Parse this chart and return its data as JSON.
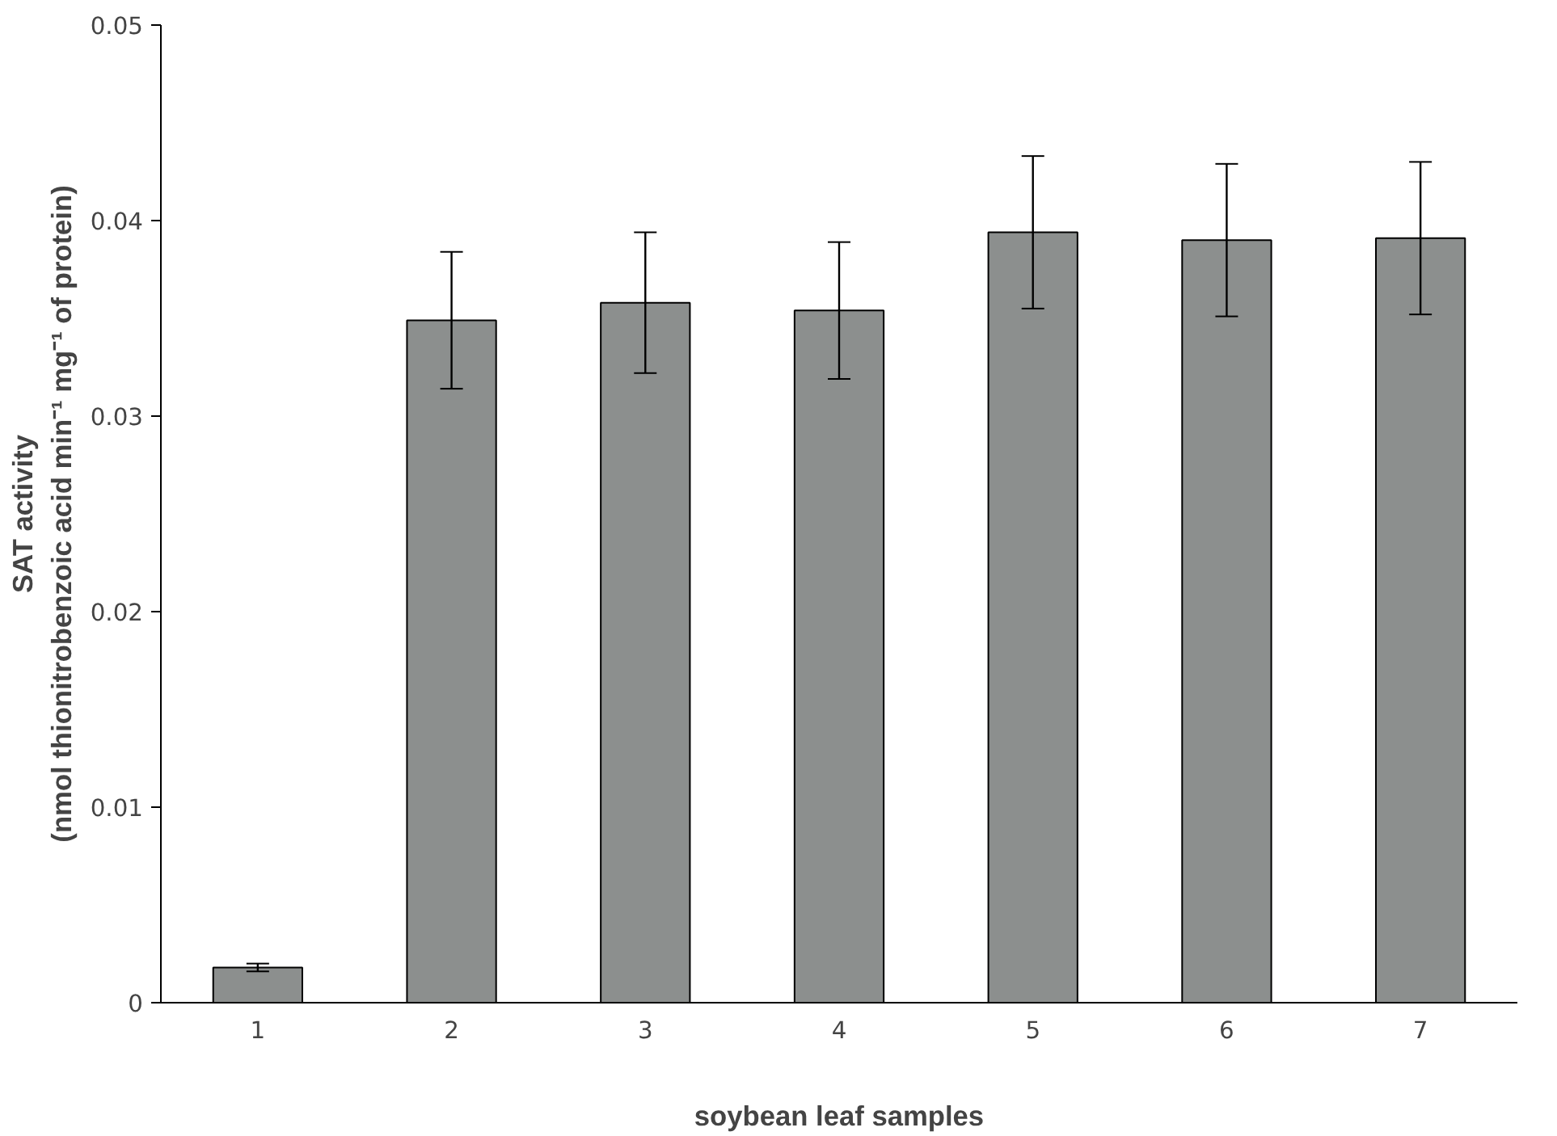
{
  "chart_data": {
    "type": "bar",
    "xlabel": "soybean leaf samples",
    "ylabel": "SAT activity\n(nmol thionitrobenzoic acid min⁻¹ mg⁻¹ of protein)",
    "categories": [
      "1",
      "2",
      "3",
      "4",
      "5",
      "6",
      "7"
    ],
    "values": [
      0.0018,
      0.0349,
      0.0358,
      0.0354,
      0.0394,
      0.039,
      0.0391
    ],
    "errors": [
      0.0002,
      0.0035,
      0.0036,
      0.0035,
      0.0039,
      0.0039,
      0.0039
    ],
    "color": "#8c8f8e",
    "ylim": [
      0,
      0.05
    ],
    "yticks": [
      0,
      {
        "value": 0.01,
        "label": "0.01"
      },
      {
        "value": 0.02,
        "label": "0.02"
      },
      {
        "value": 0.03,
        "label": "0.03"
      },
      {
        "value": 0.04,
        "label": "0.04"
      },
      {
        "value": 0.05,
        "label": "0.05"
      }
    ],
    "grid": false
  }
}
